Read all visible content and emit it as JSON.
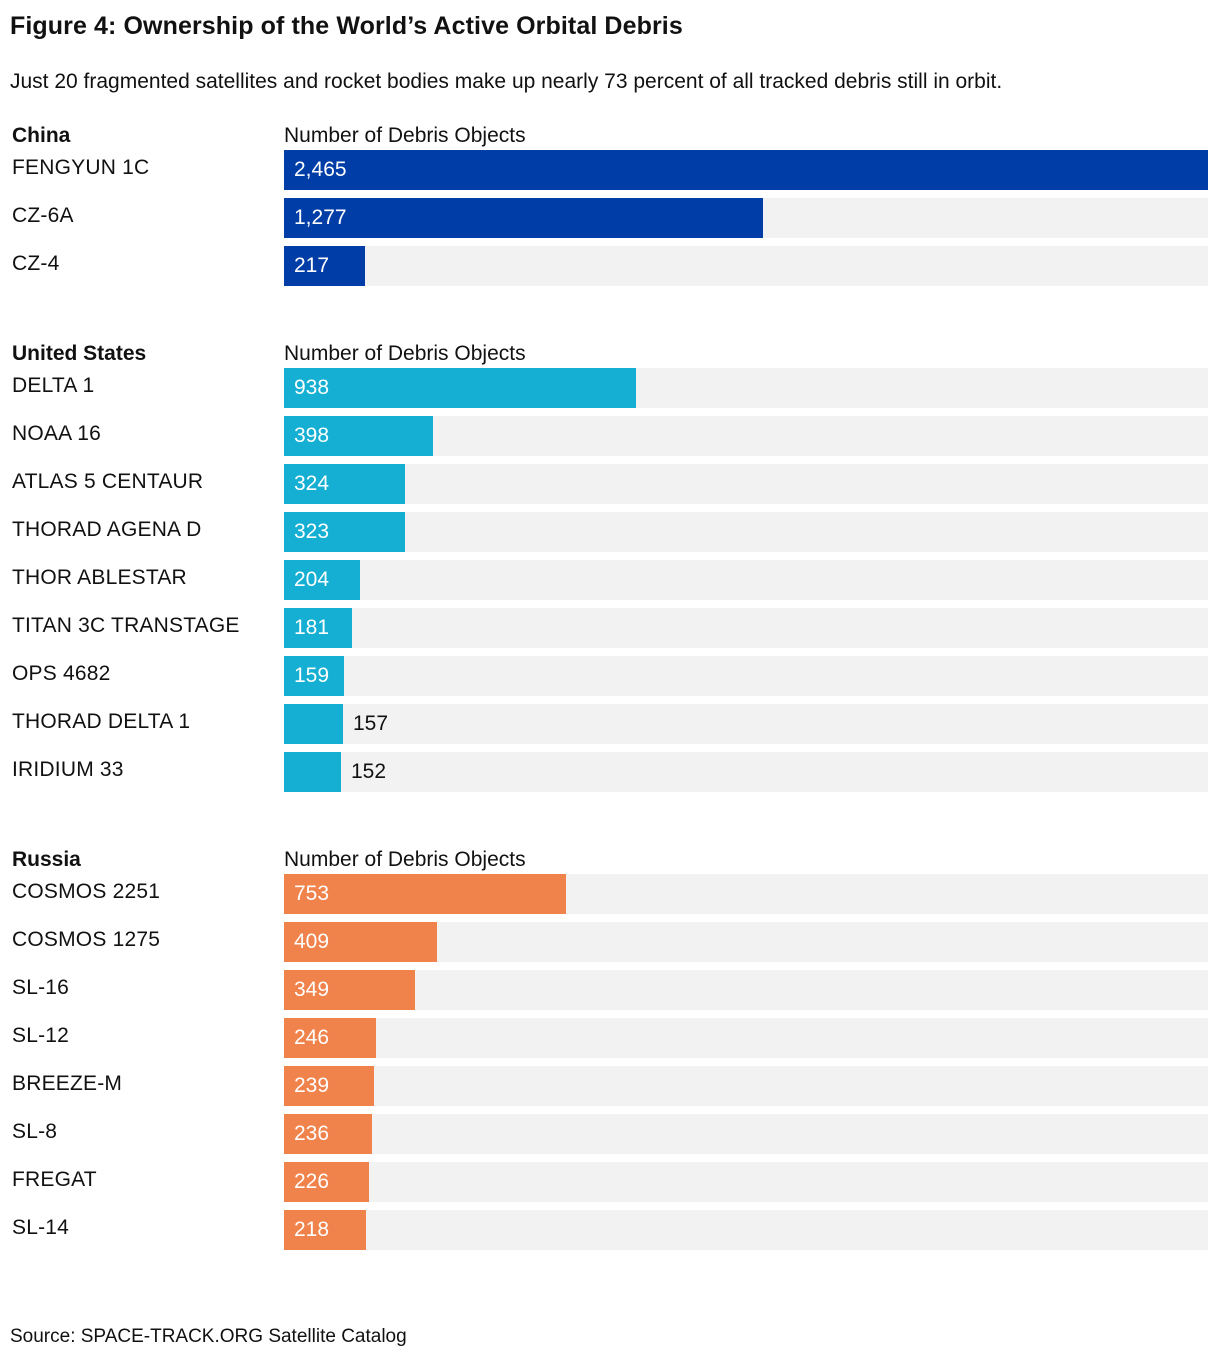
{
  "title": "Figure 4: Ownership of the World’s Active Orbital Debris",
  "subtitle": "Just 20 fragmented satellites and rocket bodies make up nearly 73 percent of all tracked debris still in orbit.",
  "source": "Source: SPACE-TRACK.ORG Satellite Catalog",
  "chart_data": [
    {
      "type": "bar",
      "orientation": "horizontal",
      "group": "China",
      "axis_label": "Number of Debris Objects",
      "color": "#003da6",
      "xlim": [
        0,
        2465
      ],
      "categories": [
        "FENGYUN 1C",
        "CZ-6A",
        "CZ-4"
      ],
      "values": [
        2465,
        1277,
        217
      ],
      "value_labels": [
        "2,465",
        "1,277",
        "217"
      ]
    },
    {
      "type": "bar",
      "orientation": "horizontal",
      "group": "United States",
      "axis_label": "Number of Debris Objects",
      "color": "#14afd2",
      "xlim": [
        0,
        2465
      ],
      "categories": [
        "DELTA 1",
        "NOAA 16",
        "ATLAS 5 CENTAUR",
        "THORAD AGENA D",
        "THOR ABLESTAR",
        "TITAN 3C TRANSTAGE",
        "OPS 4682",
        "THORAD DELTA 1",
        "IRIDIUM 33"
      ],
      "values": [
        938,
        398,
        324,
        323,
        204,
        181,
        159,
        157,
        152
      ],
      "value_labels": [
        "938",
        "398",
        "324",
        "323",
        "204",
        "181",
        "159",
        "157",
        "152"
      ]
    },
    {
      "type": "bar",
      "orientation": "horizontal",
      "group": "Russia",
      "axis_label": "Number of Debris Objects",
      "color": "#f0824b",
      "xlim": [
        0,
        2465
      ],
      "categories": [
        "COSMOS 2251",
        "COSMOS 1275",
        "SL-16",
        "SL-12",
        "BREEZE-M",
        "SL-8",
        "FREGAT",
        "SL-14"
      ],
      "values": [
        753,
        409,
        349,
        246,
        239,
        236,
        226,
        218
      ],
      "value_labels": [
        "753",
        "409",
        "349",
        "246",
        "239",
        "236",
        "226",
        "218"
      ]
    }
  ]
}
